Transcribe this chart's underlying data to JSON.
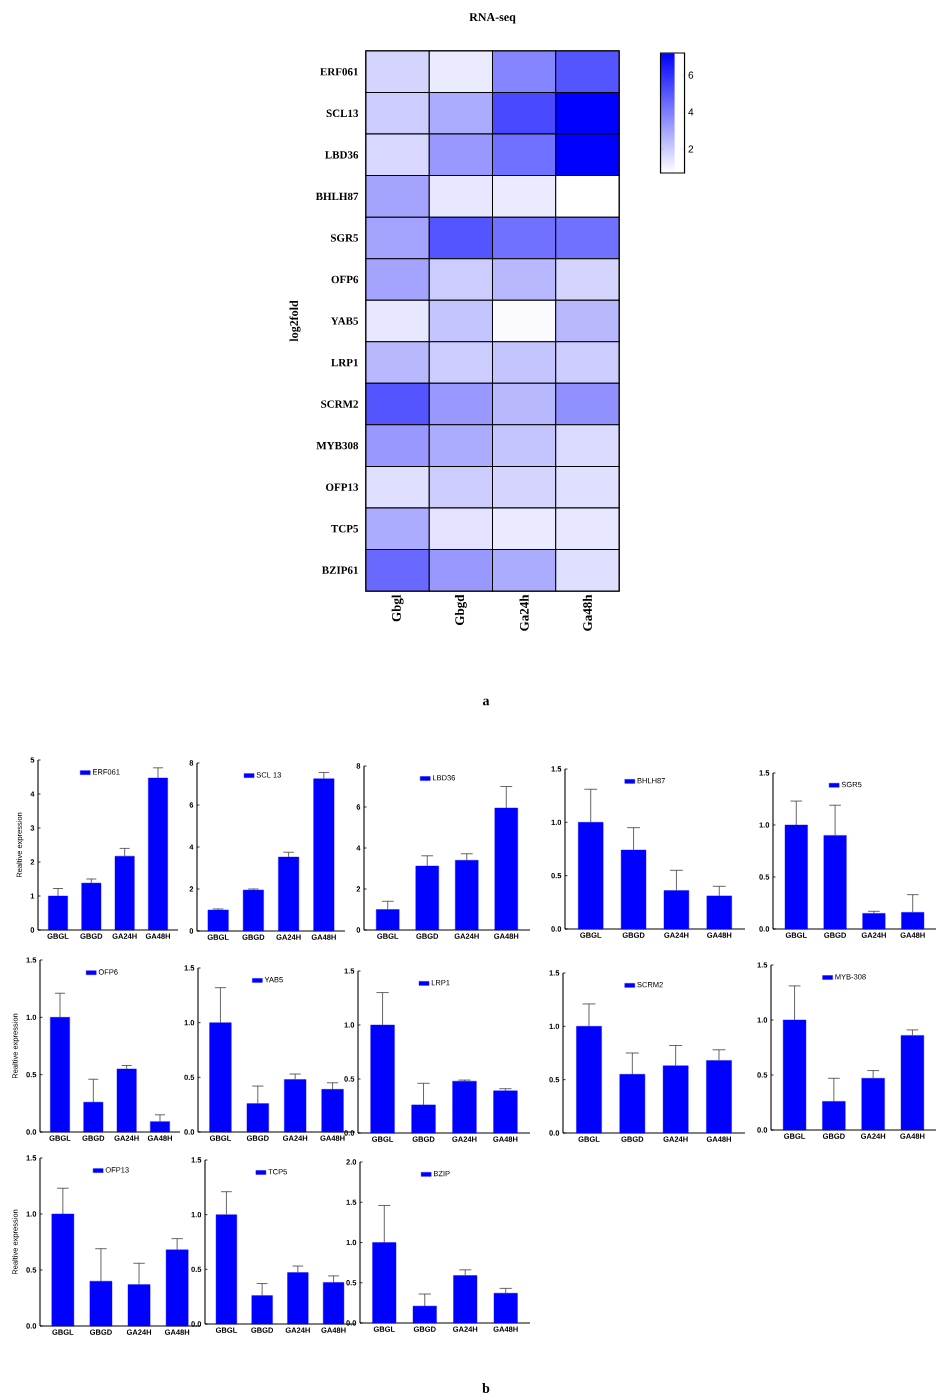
{
  "chart_data": [
    {
      "type": "heatmap",
      "title": "RNA-seq",
      "ylabel": "log2fold",
      "categories": [
        "Gbgl",
        "Gbgd",
        "Ga24h",
        "Ga48h"
      ],
      "y_categories": [
        "ERF061",
        "SCL13",
        "LBD36",
        "BHLH87",
        "SGR5",
        "OFP6",
        "YAB5",
        "LRP1",
        "SCRM2",
        "MYB308",
        "OFP13",
        "TCP5",
        "BZIP61"
      ],
      "cells": [
        [
          1.8,
          1.2,
          3.8,
          5
        ],
        [
          2,
          2.8,
          5.3,
          7.2
        ],
        [
          1.7,
          3.3,
          4.3,
          7.2
        ],
        [
          3,
          1.3,
          1.2,
          0.7
        ],
        [
          3,
          5,
          4.3,
          4.3
        ],
        [
          3,
          2,
          2.5,
          1.8
        ],
        [
          1.3,
          2.2,
          0.8,
          2.5
        ],
        [
          2.5,
          2,
          2.2,
          2
        ],
        [
          5,
          3.3,
          2.5,
          3.5
        ],
        [
          3.3,
          2.8,
          2.2,
          1.6
        ],
        [
          1.5,
          2,
          1.8,
          1.5
        ],
        [
          2.8,
          1.4,
          1.2,
          1.3
        ],
        [
          4.5,
          3.3,
          2.8,
          1.5
        ]
      ],
      "clim": [
        0.7,
        7.2
      ],
      "cticks": [
        2,
        4,
        6
      ],
      "annotations": [
        "a"
      ]
    },
    {
      "type": "bar",
      "ylabel": "Realtive expression",
      "categories": [
        "GBGL",
        "GBGD",
        "GA24H",
        "GA48H"
      ],
      "series": [
        {
          "name": "ERF061",
          "color": "#0000ff",
          "values": [
            1.0,
            1.38,
            2.17,
            4.47
          ],
          "errors": [
            [
              1.0,
              1.22
            ],
            [
              1.38,
              1.5
            ],
            [
              2.17,
              2.4
            ],
            [
              4.47,
              4.77
            ]
          ]
        }
      ],
      "ylim": [
        0,
        5
      ],
      "yticks": [
        0,
        1,
        2,
        3,
        4,
        5
      ],
      "legend": "top"
    },
    {
      "type": "bar",
      "categories": [
        "GBGL",
        "GBGD",
        "GA24H",
        "GA48H"
      ],
      "series": [
        {
          "name": "SCL 13",
          "color": "#0000ff",
          "values": [
            1.0,
            1.95,
            3.52,
            7.25
          ],
          "errors": [
            [
              1.0,
              1.05
            ],
            [
              1.95,
              2.0
            ],
            [
              3.52,
              3.75
            ],
            [
              7.25,
              7.55
            ]
          ]
        }
      ],
      "ylim": [
        0,
        8
      ],
      "yticks": [
        0,
        2,
        4,
        6,
        8
      ],
      "legend": "top"
    },
    {
      "type": "bar",
      "categories": [
        "GBGL",
        "GBGD",
        "GA24H",
        "GA48H"
      ],
      "series": [
        {
          "name": "LBD36",
          "color": "#0000ff",
          "values": [
            1.0,
            3.12,
            3.4,
            5.95
          ],
          "errors": [
            [
              1.0,
              1.4
            ],
            [
              3.12,
              3.62
            ],
            [
              3.4,
              3.72
            ],
            [
              5.95,
              7.0
            ]
          ]
        }
      ],
      "ylim": [
        0,
        8
      ],
      "yticks": [
        0,
        2,
        4,
        6,
        8
      ],
      "legend": "top"
    },
    {
      "type": "bar",
      "categories": [
        "GBGL",
        "GBGD",
        "GA24H",
        "GA48H"
      ],
      "series": [
        {
          "name": "BHLH87",
          "color": "#0000ff",
          "values": [
            1.0,
            0.74,
            0.36,
            0.31
          ],
          "errors": [
            [
              1.0,
              1.31
            ],
            [
              0.74,
              0.95
            ],
            [
              0.36,
              0.55
            ],
            [
              0.31,
              0.4
            ]
          ]
        }
      ],
      "ylim": [
        0,
        1.5
      ],
      "yticks": [
        {
          "value": 0,
          "label": "0.0"
        },
        {
          "value": 0.5,
          "label": "0.5"
        },
        {
          "value": 1,
          "label": "1.0"
        },
        {
          "value": 1.5,
          "label": "1.5"
        }
      ],
      "legend": "top"
    },
    {
      "type": "bar",
      "categories": [
        "GBGL",
        "GBGD",
        "GA24H",
        "GA48H"
      ],
      "series": [
        {
          "name": "SGR5",
          "color": "#0000ff",
          "values": [
            1.0,
            0.9,
            0.15,
            0.16
          ],
          "errors": [
            [
              1.0,
              1.23
            ],
            [
              0.9,
              1.19
            ],
            [
              0.15,
              0.17
            ],
            [
              0.16,
              0.33
            ]
          ]
        }
      ],
      "ylim": [
        0,
        1.5
      ],
      "yticks": [
        {
          "value": 0,
          "label": "0.0"
        },
        {
          "value": 0.5,
          "label": "0.5"
        },
        {
          "value": 1,
          "label": "1.0"
        },
        {
          "value": 1.5,
          "label": "1.5"
        }
      ],
      "legend": "top"
    },
    {
      "type": "bar",
      "ylabel": "Realtive expression",
      "categories": [
        "GBGL",
        "GBGD",
        "GA24H",
        "GA48H"
      ],
      "series": [
        {
          "name": "OFP6",
          "color": "#0000ff",
          "values": [
            1.0,
            0.26,
            0.55,
            0.09
          ],
          "errors": [
            [
              1.0,
              1.21
            ],
            [
              0.26,
              0.46
            ],
            [
              0.55,
              0.58
            ],
            [
              0.09,
              0.15
            ]
          ]
        }
      ],
      "ylim": [
        0,
        1.5
      ],
      "yticks": [
        {
          "value": 0,
          "label": "0.0"
        },
        {
          "value": 0.5,
          "label": "0.5"
        },
        {
          "value": 1,
          "label": "1.0"
        },
        {
          "value": 1.5,
          "label": "1.5"
        }
      ],
      "legend": "top"
    },
    {
      "type": "bar",
      "categories": [
        "GBGL",
        "GBGD",
        "GA24H",
        "GA48H"
      ],
      "series": [
        {
          "name": "YAB5",
          "color": "#0000ff",
          "values": [
            1.0,
            0.26,
            0.48,
            0.39
          ],
          "errors": [
            [
              1.0,
              1.32
            ],
            [
              0.26,
              0.42
            ],
            [
              0.48,
              0.53
            ],
            [
              0.39,
              0.45
            ]
          ]
        }
      ],
      "ylim": [
        0,
        1.5
      ],
      "yticks": [
        {
          "value": 0,
          "label": "0.0"
        },
        {
          "value": 0.5,
          "label": "0.5"
        },
        {
          "value": 1,
          "label": "1.0"
        },
        {
          "value": 1.5,
          "label": "1.5"
        }
      ],
      "legend": "top"
    },
    {
      "type": "bar",
      "categories": [
        "GBGL",
        "GBGD",
        "GA24H",
        "GA48H"
      ],
      "series": [
        {
          "name": "LRP1",
          "color": "#0000ff",
          "values": [
            1.0,
            0.26,
            0.48,
            0.39
          ],
          "errors": [
            [
              1.0,
              1.3
            ],
            [
              0.26,
              0.46
            ],
            [
              0.48,
              0.49
            ],
            [
              0.39,
              0.41
            ]
          ]
        }
      ],
      "ylim": [
        0,
        1.5
      ],
      "yticks": [
        {
          "value": 0,
          "label": "0.0"
        },
        {
          "value": 0.5,
          "label": "0.5"
        },
        {
          "value": 1,
          "label": "1.0"
        },
        {
          "value": 1.5,
          "label": "1.5"
        }
      ],
      "legend": "top"
    },
    {
      "type": "bar",
      "categories": [
        "GBGL",
        "GBGD",
        "GA24H",
        "GA48H"
      ],
      "series": [
        {
          "name": "SCRM2",
          "color": "#0000ff",
          "values": [
            1.0,
            0.55,
            0.63,
            0.68
          ],
          "errors": [
            [
              1.0,
              1.21
            ],
            [
              0.55,
              0.75
            ],
            [
              0.63,
              0.82
            ],
            [
              0.68,
              0.78
            ]
          ]
        }
      ],
      "ylim": [
        0,
        1.5
      ],
      "yticks": [
        {
          "value": 0,
          "label": "0.0"
        },
        {
          "value": 0.5,
          "label": "0.5"
        },
        {
          "value": 1,
          "label": "1.0"
        },
        {
          "value": 1.5,
          "label": "1.5"
        }
      ],
      "legend": "top"
    },
    {
      "type": "bar",
      "categories": [
        "GBGL",
        "GBGD",
        "GA24H",
        "GA48H"
      ],
      "series": [
        {
          "name": "MYB-308",
          "color": "#0000ff",
          "values": [
            1.0,
            0.26,
            0.47,
            0.86
          ],
          "errors": [
            [
              1.0,
              1.31
            ],
            [
              0.26,
              0.47
            ],
            [
              0.47,
              0.54
            ],
            [
              0.86,
              0.91
            ]
          ]
        }
      ],
      "ylim": [
        0,
        1.5
      ],
      "yticks": [
        {
          "value": 0,
          "label": "0.0"
        },
        {
          "value": 0.5,
          "label": "0.5"
        },
        {
          "value": 1,
          "label": "1.0"
        },
        {
          "value": 1.5,
          "label": "1.5"
        }
      ],
      "legend": "top"
    },
    {
      "type": "bar",
      "ylabel": "Realtive expression",
      "categories": [
        "GBGL",
        "GBGD",
        "GA24H",
        "GA48H"
      ],
      "series": [
        {
          "name": "OFP13",
          "color": "#0000ff",
          "values": [
            1.0,
            0.4,
            0.37,
            0.68
          ],
          "errors": [
            [
              1.0,
              1.23
            ],
            [
              0.4,
              0.69
            ],
            [
              0.37,
              0.56
            ],
            [
              0.68,
              0.78
            ]
          ]
        }
      ],
      "ylim": [
        0,
        1.5
      ],
      "yticks": [
        {
          "value": 0,
          "label": "0.0"
        },
        {
          "value": 0.5,
          "label": "0.5"
        },
        {
          "value": 1,
          "label": "1.0"
        },
        {
          "value": 1.5,
          "label": "1.5"
        }
      ],
      "legend": "top"
    },
    {
      "type": "bar",
      "categories": [
        "GBGL",
        "GBGD",
        "GA24H",
        "GA48H"
      ],
      "series": [
        {
          "name": "TCP5",
          "color": "#0000ff",
          "values": [
            1.0,
            0.26,
            0.47,
            0.38
          ],
          "errors": [
            [
              1.0,
              1.21
            ],
            [
              0.26,
              0.37
            ],
            [
              0.47,
              0.53
            ],
            [
              0.38,
              0.44
            ]
          ]
        }
      ],
      "ylim": [
        0,
        1.5
      ],
      "yticks": [
        {
          "value": 0,
          "label": "0.0"
        },
        {
          "value": 0.5,
          "label": "0.5"
        },
        {
          "value": 1,
          "label": "1.0"
        },
        {
          "value": 1.5,
          "label": "1.5"
        }
      ],
      "legend": "top"
    },
    {
      "type": "bar",
      "categories": [
        "GBGL",
        "GBGD",
        "GA24H",
        "GA48H"
      ],
      "series": [
        {
          "name": "BZIP",
          "color": "#0000ff",
          "values": [
            1.0,
            0.21,
            0.59,
            0.37
          ],
          "errors": [
            [
              1.0,
              1.46
            ],
            [
              0.21,
              0.36
            ],
            [
              0.59,
              0.66
            ],
            [
              0.37,
              0.43
            ]
          ]
        }
      ],
      "ylim": [
        0,
        2
      ],
      "yticks": [
        {
          "value": 0,
          "label": "0.0"
        },
        {
          "value": 0.5,
          "label": "0.5"
        },
        {
          "value": 1,
          "label": "1.0"
        },
        {
          "value": 1.5,
          "label": "1.5"
        },
        {
          "value": 2,
          "label": "2.0"
        }
      ],
      "legend": "top",
      "annotations": [
        "b"
      ]
    }
  ]
}
